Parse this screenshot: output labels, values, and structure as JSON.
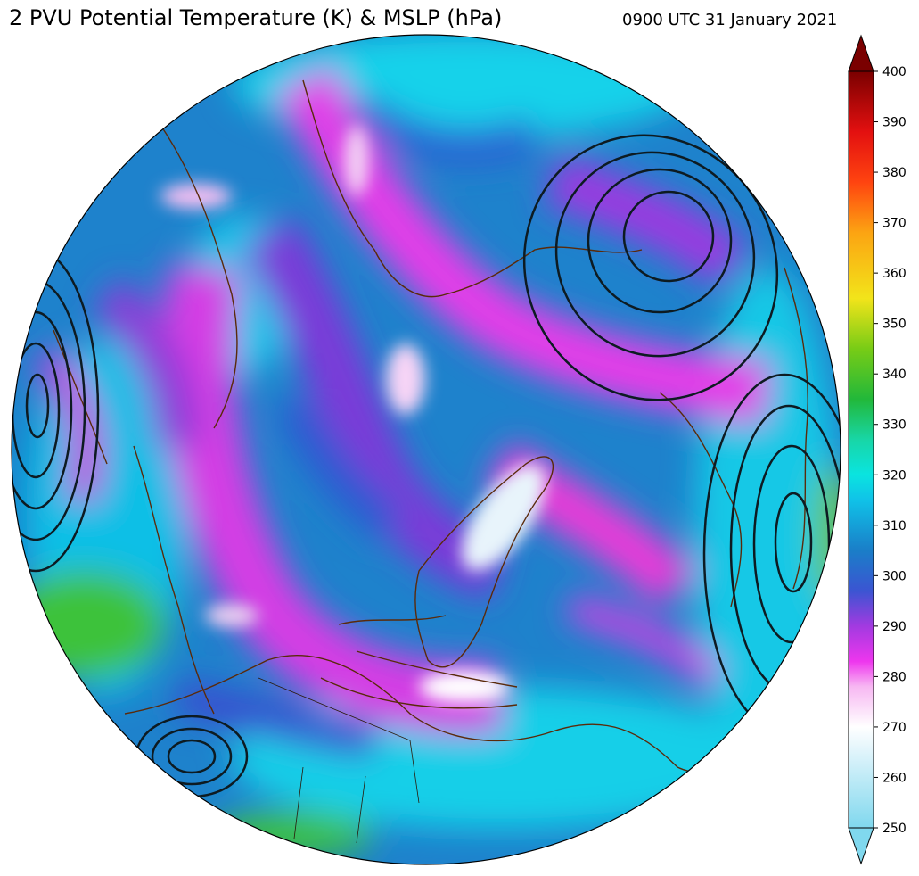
{
  "header": {
    "title": "2 PVU Potential Temperature (K) & MSLP (hPa)",
    "valid_time": "0900 UTC 31 January 2021"
  },
  "colorbar": {
    "ticks": [
      "250",
      "260",
      "270",
      "280",
      "290",
      "300",
      "310",
      "320",
      "330",
      "340",
      "350",
      "360",
      "370",
      "380",
      "390",
      "400"
    ],
    "min": 250,
    "max": 400,
    "extend": "both",
    "stops": [
      {
        "value": 250,
        "color": "#80d8ee"
      },
      {
        "value": 265,
        "color": "#dff4fb"
      },
      {
        "value": 270,
        "color": "#ffffff"
      },
      {
        "value": 278,
        "color": "#f7b7f2"
      },
      {
        "value": 283,
        "color": "#ee36ee"
      },
      {
        "value": 290,
        "color": "#a23ae0"
      },
      {
        "value": 297,
        "color": "#3b55d2"
      },
      {
        "value": 305,
        "color": "#1a7ec8"
      },
      {
        "value": 315,
        "color": "#10c2e8"
      },
      {
        "value": 320,
        "color": "#0ae4e0"
      },
      {
        "value": 327,
        "color": "#18d6a6"
      },
      {
        "value": 335,
        "color": "#22b83a"
      },
      {
        "value": 345,
        "color": "#78cc16"
      },
      {
        "value": 355,
        "color": "#f2e41a"
      },
      {
        "value": 368,
        "color": "#fca412"
      },
      {
        "value": 378,
        "color": "#ff4410"
      },
      {
        "value": 388,
        "color": "#e31010"
      },
      {
        "value": 400,
        "color": "#7a0000"
      }
    ]
  },
  "map": {
    "projection": "north-polar-orthographic",
    "base_color": "#1e82cc",
    "coastline_color": "#5a2a0a",
    "contour_color": "#0d1b22"
  }
}
